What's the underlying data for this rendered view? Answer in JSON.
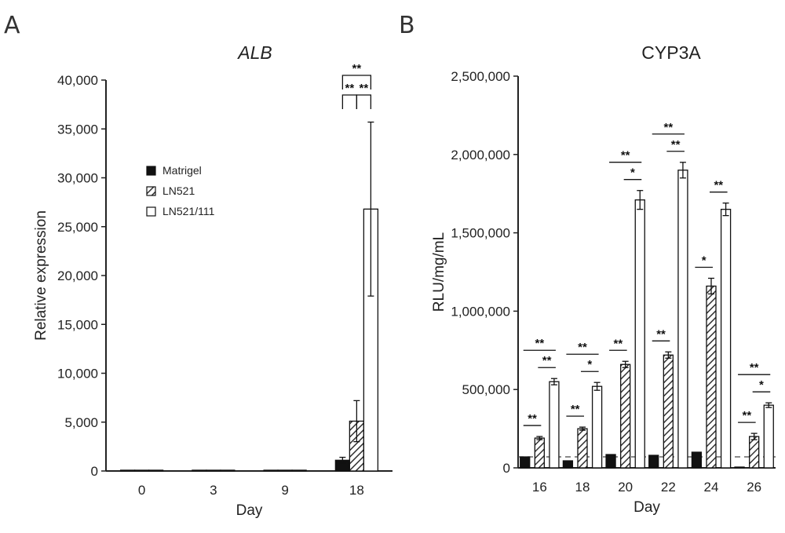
{
  "chart_data": [
    {
      "panel": "A",
      "type": "bar",
      "title": "ALB",
      "xlabel": "Day",
      "ylabel": "Relative expression",
      "categories": [
        "0",
        "3",
        "9",
        "18"
      ],
      "ylim": [
        0,
        40000
      ],
      "yticks": [
        0,
        5000,
        10000,
        15000,
        20000,
        25000,
        30000,
        35000,
        40000
      ],
      "ytick_labels": [
        "0",
        "5,000",
        "10,000",
        "15,000",
        "20,000",
        "25,000",
        "30,000",
        "35,000",
        "40,000"
      ],
      "grid": false,
      "legend_position": "left-center",
      "series": [
        {
          "name": "Matrigel",
          "pattern": "solid",
          "values": [
            40,
            30,
            25,
            1100
          ],
          "errors": [
            10,
            10,
            10,
            300
          ]
        },
        {
          "name": "LN521",
          "pattern": "hatched",
          "values": [
            40,
            30,
            30,
            5100
          ],
          "errors": [
            10,
            10,
            10,
            2100
          ]
        },
        {
          "name": "LN521/111",
          "pattern": "open",
          "values": [
            40,
            30,
            30,
            26800
          ],
          "errors": [
            10,
            10,
            10,
            8900
          ]
        }
      ],
      "significance": [
        {
          "category": "18",
          "pair": [
            0,
            1
          ],
          "label": "**"
        },
        {
          "category": "18",
          "pair": [
            1,
            2
          ],
          "label": "**"
        },
        {
          "category": "18",
          "pair": [
            0,
            2
          ],
          "label": "**"
        }
      ]
    },
    {
      "panel": "B",
      "type": "bar",
      "title": "CYP3A",
      "xlabel": "Day",
      "ylabel": "RLU/mg/mL",
      "categories": [
        "16",
        "18",
        "20",
        "22",
        "24",
        "26"
      ],
      "ylim": [
        0,
        2500000
      ],
      "yticks": [
        0,
        500000,
        1000000,
        1500000,
        2000000,
        2500000
      ],
      "ytick_labels": [
        "0",
        "500,000",
        "1,000,000",
        "1,500,000",
        "2,000,000",
        "2,500,000"
      ],
      "grid": false,
      "reference_line": 70000,
      "series": [
        {
          "name": "Matrigel",
          "pattern": "solid",
          "values": [
            70000,
            45000,
            85000,
            80000,
            100000,
            5000
          ],
          "errors": [
            0,
            0,
            0,
            0,
            0,
            0
          ]
        },
        {
          "name": "LN521",
          "pattern": "hatched",
          "values": [
            190000,
            250000,
            660000,
            720000,
            1160000,
            200000
          ],
          "errors": [
            10000,
            10000,
            20000,
            20000,
            50000,
            20000
          ]
        },
        {
          "name": "LN521/111",
          "pattern": "open",
          "values": [
            550000,
            520000,
            1710000,
            1900000,
            1650000,
            400000
          ],
          "errors": [
            20000,
            25000,
            60000,
            50000,
            40000,
            15000
          ]
        }
      ],
      "significance": [
        {
          "category": "16",
          "pair": [
            0,
            1
          ],
          "label": "**"
        },
        {
          "category": "16",
          "pair": [
            1,
            2
          ],
          "label": "**"
        },
        {
          "category": "16",
          "pair": [
            0,
            2
          ],
          "label": "**"
        },
        {
          "category": "18",
          "pair": [
            0,
            1
          ],
          "label": "**"
        },
        {
          "category": "18",
          "pair": [
            1,
            2
          ],
          "label": "*"
        },
        {
          "category": "18",
          "pair": [
            0,
            2
          ],
          "label": "**"
        },
        {
          "category": "20",
          "pair": [
            0,
            1
          ],
          "label": "**"
        },
        {
          "category": "20",
          "pair": [
            1,
            2
          ],
          "label": "*"
        },
        {
          "category": "20",
          "pair": [
            0,
            2
          ],
          "label": "**"
        },
        {
          "category": "22",
          "pair": [
            0,
            1
          ],
          "label": "**"
        },
        {
          "category": "22",
          "pair": [
            1,
            2
          ],
          "label": "**"
        },
        {
          "category": "22",
          "pair": [
            0,
            2
          ],
          "label": "**"
        },
        {
          "category": "24",
          "pair": [
            0,
            1
          ],
          "label": "*"
        },
        {
          "category": "24",
          "pair": [
            1,
            2
          ],
          "label": "**"
        },
        {
          "category": "26",
          "pair": [
            0,
            1
          ],
          "label": "**"
        },
        {
          "category": "26",
          "pair": [
            1,
            2
          ],
          "label": "*"
        },
        {
          "category": "26",
          "pair": [
            0,
            2
          ],
          "label": "**"
        }
      ]
    }
  ]
}
